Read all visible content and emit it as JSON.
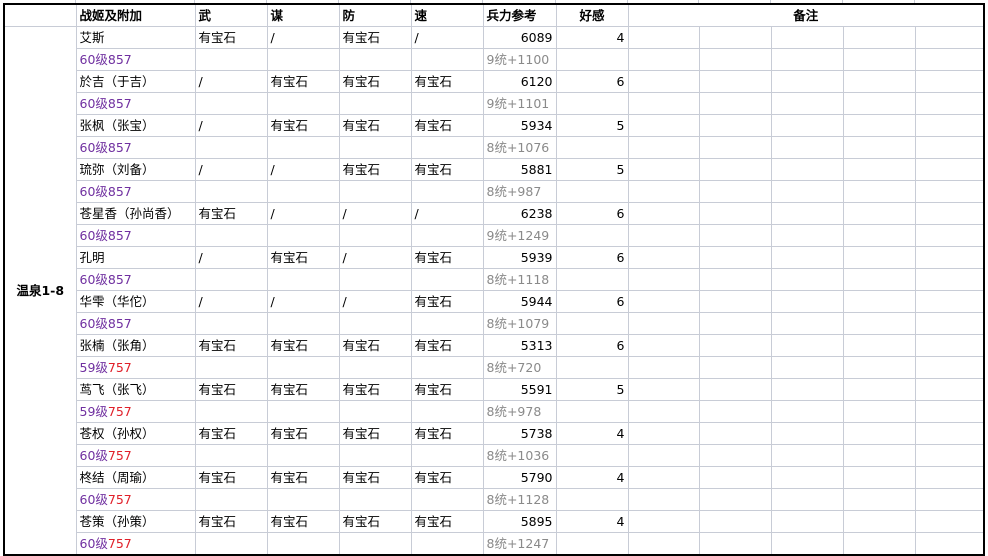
{
  "headers": {
    "group": "",
    "name": "战姬及附加",
    "wu": "武",
    "mou": "谋",
    "fang": "防",
    "su": "速",
    "troops": "兵力参考",
    "favor": "好感",
    "notes": "备注"
  },
  "group_label": "温泉1-8",
  "colors": {
    "level": "#7030a0",
    "level_red": "#e0202a",
    "sub": "#8a8a8a",
    "grid": "#c8ccd6"
  },
  "rows": [
    {
      "name": "艾斯",
      "wu": "有宝石",
      "mou": "/",
      "fang": "有宝石",
      "su": "/",
      "troops": "6089",
      "favor": "4",
      "level": "60级",
      "level_num": "857",
      "level_num_red": false,
      "sub": "9统+1100"
    },
    {
      "name": "於吉（于吉）",
      "wu": "/",
      "mou": "有宝石",
      "fang": "有宝石",
      "su": "有宝石",
      "troops": "6120",
      "favor": "6",
      "level": "60级",
      "level_num": "857",
      "level_num_red": false,
      "sub": "9统+1101"
    },
    {
      "name": "张枫（张宝）",
      "wu": "/",
      "mou": "有宝石",
      "fang": "有宝石",
      "su": "有宝石",
      "troops": "5934",
      "favor": "5",
      "level": "60级",
      "level_num": "857",
      "level_num_red": false,
      "sub": "8统+1076"
    },
    {
      "name": "琉弥（刘备）",
      "wu": "/",
      "mou": "/",
      "fang": "有宝石",
      "su": "有宝石",
      "troops": "5881",
      "favor": "5",
      "level": "60级",
      "level_num": "857",
      "level_num_red": false,
      "sub": "8统+987"
    },
    {
      "name": "苍星香（孙尚香）",
      "wu": "有宝石",
      "mou": "/",
      "fang": "/",
      "su": "/",
      "troops": "6238",
      "favor": "6",
      "level": "60级",
      "level_num": "857",
      "level_num_red": false,
      "sub": "9统+1249"
    },
    {
      "name": "孔明",
      "wu": "/",
      "mou": "有宝石",
      "fang": "/",
      "su": "有宝石",
      "troops": "5939",
      "favor": "6",
      "level": "60级",
      "level_num": "857",
      "level_num_red": false,
      "sub": "8统+1118"
    },
    {
      "name": "华雫（华佗）",
      "wu": "/",
      "mou": "/",
      "fang": "/",
      "su": "有宝石",
      "troops": "5944",
      "favor": "6",
      "level": "60级",
      "level_num": "857",
      "level_num_red": false,
      "sub": "8统+1079"
    },
    {
      "name": "张楠（张角）",
      "wu": "有宝石",
      "mou": "有宝石",
      "fang": "有宝石",
      "su": "有宝石",
      "troops": "5313",
      "favor": "6",
      "level": "59级",
      "level_num": "757",
      "level_num_red": true,
      "sub": "8统+720"
    },
    {
      "name": "茑飞（张飞）",
      "wu": "有宝石",
      "mou": "有宝石",
      "fang": "有宝石",
      "su": "有宝石",
      "troops": "5591",
      "favor": "5",
      "level": "59级",
      "level_num": "757",
      "level_num_red": true,
      "sub": "8统+978"
    },
    {
      "name": "苍权（孙权）",
      "wu": "有宝石",
      "mou": "有宝石",
      "fang": "有宝石",
      "su": "有宝石",
      "troops": "5738",
      "favor": "4",
      "level": "60级",
      "level_num": "757",
      "level_num_red": true,
      "sub": "8统+1036"
    },
    {
      "name": "柊结（周瑜）",
      "wu": "有宝石",
      "mou": "有宝石",
      "fang": "有宝石",
      "su": "有宝石",
      "troops": "5790",
      "favor": "4",
      "level": "60级",
      "level_num": "757",
      "level_num_red": true,
      "sub": "8统+1128"
    },
    {
      "name": "苍策（孙策）",
      "wu": "有宝石",
      "mou": "有宝石",
      "fang": "有宝石",
      "su": "有宝石",
      "troops": "5895",
      "favor": "4",
      "level": "60级",
      "level_num": "757",
      "level_num_red": true,
      "sub": "8统+1247"
    }
  ]
}
